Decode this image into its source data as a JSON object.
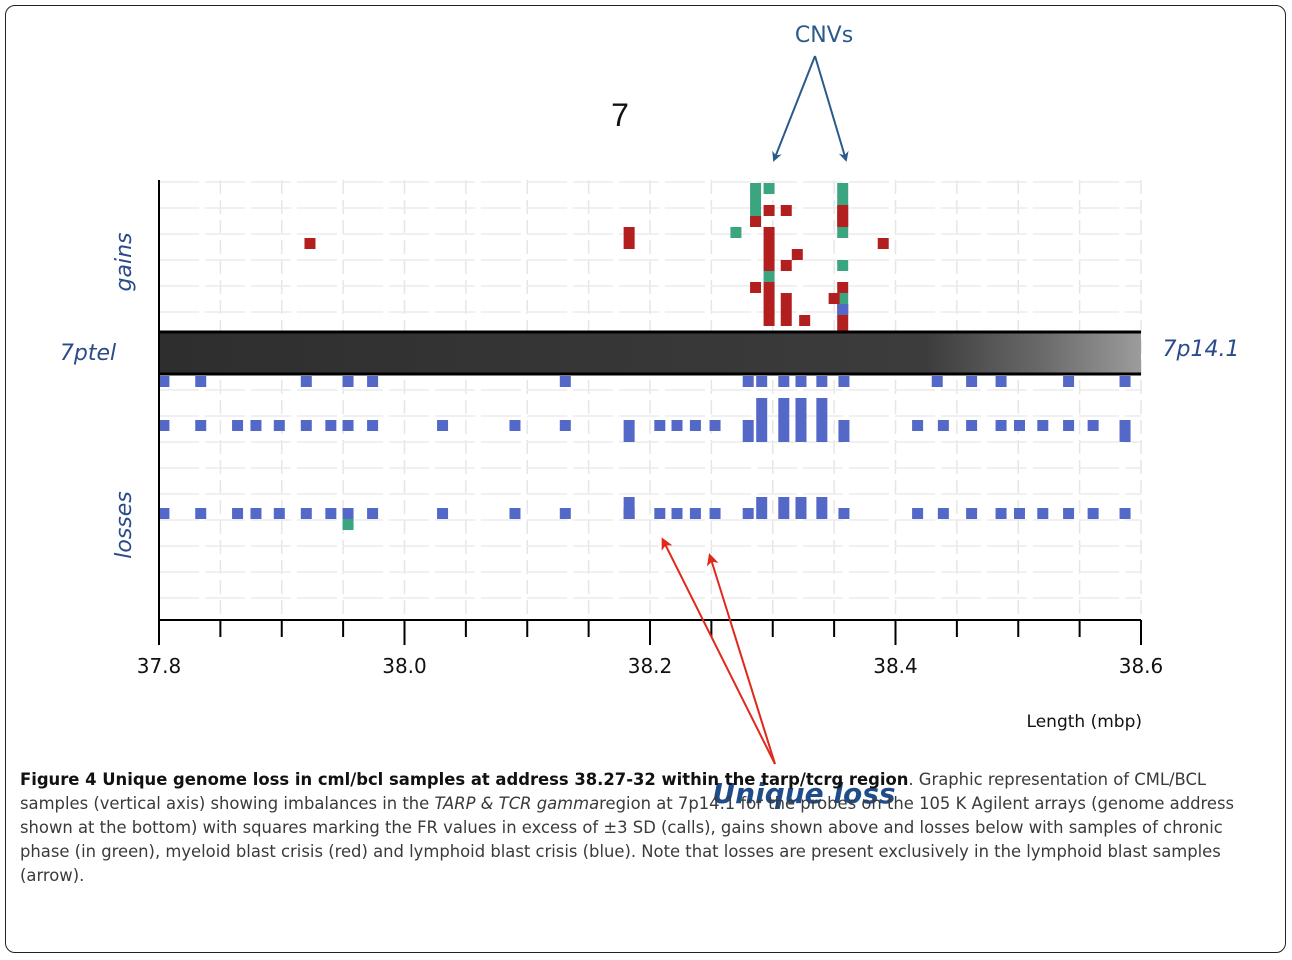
{
  "chart_data": {
    "type": "scatter",
    "title": "7",
    "xlabel": "Length (mbp)",
    "xlim": [
      37.8,
      38.6
    ],
    "x_ticks": [
      "37.8",
      "38.0",
      "38.2",
      "38.4",
      "38.6"
    ],
    "upper_label": "gains",
    "lower_label": "losses",
    "band_left_label": "7ptel",
    "band_right_label": "7p14.1",
    "grid": true,
    "series": [
      {
        "name": "chronic phase",
        "color": "#3aa57e",
        "marks": [
          {
            "side": "gain",
            "x": 38.286,
            "row": 1
          },
          {
            "side": "gain",
            "x": 38.297,
            "row": 1
          },
          {
            "side": "gain",
            "x": 38.357,
            "row": 1
          },
          {
            "side": "gain",
            "x": 38.286,
            "row": 2
          },
          {
            "side": "gain",
            "x": 38.357,
            "row": 2
          },
          {
            "side": "gain",
            "x": 38.286,
            "row": 3
          },
          {
            "side": "gain",
            "x": 38.357,
            "row": 3
          },
          {
            "side": "gain",
            "x": 38.286,
            "row": 4
          },
          {
            "side": "gain",
            "x": 38.27,
            "row": 5
          },
          {
            "side": "gain",
            "x": 38.357,
            "row": 4
          },
          {
            "side": "gain",
            "x": 38.357,
            "row": 5
          },
          {
            "side": "gain",
            "x": 38.297,
            "row": 9
          },
          {
            "side": "gain",
            "x": 38.357,
            "row": 8
          },
          {
            "side": "gain",
            "x": 38.357,
            "row": 11
          },
          {
            "side": "loss",
            "x": 37.954,
            "row": 14
          }
        ]
      },
      {
        "name": "myeloid blast crisis",
        "color": "#b31e1e",
        "marks": [
          {
            "side": "gain",
            "x": 38.297,
            "row": 3
          },
          {
            "side": "gain",
            "x": 38.311,
            "row": 3
          },
          {
            "side": "gain",
            "x": 38.357,
            "row": 3
          },
          {
            "side": "gain",
            "x": 38.286,
            "row": 4
          },
          {
            "side": "gain",
            "x": 38.357,
            "row": 4
          },
          {
            "side": "gain",
            "x": 38.297,
            "row": 5
          },
          {
            "side": "gain",
            "x": 38.183,
            "row": 5
          },
          {
            "side": "gain",
            "x": 38.39,
            "row": 6
          },
          {
            "side": "gain",
            "x": 37.923,
            "row": 6
          },
          {
            "side": "gain",
            "x": 38.183,
            "row": 6
          },
          {
            "side": "gain",
            "x": 38.297,
            "row": 6
          },
          {
            "side": "gain",
            "x": 38.297,
            "row": 7
          },
          {
            "side": "gain",
            "x": 38.32,
            "row": 7
          },
          {
            "side": "gain",
            "x": 38.297,
            "row": 8
          },
          {
            "side": "gain",
            "x": 38.311,
            "row": 8
          },
          {
            "side": "gain",
            "x": 38.286,
            "row": 10
          },
          {
            "side": "gain",
            "x": 38.297,
            "row": 10
          },
          {
            "side": "gain",
            "x": 38.357,
            "row": 10
          },
          {
            "side": "gain",
            "x": 38.297,
            "row": 11
          },
          {
            "side": "gain",
            "x": 38.311,
            "row": 11
          },
          {
            "side": "gain",
            "x": 38.35,
            "row": 11
          },
          {
            "side": "gain",
            "x": 38.297,
            "row": 12
          },
          {
            "side": "gain",
            "x": 38.311,
            "row": 12
          },
          {
            "side": "gain",
            "x": 38.357,
            "row": 12
          },
          {
            "side": "gain",
            "x": 38.297,
            "row": 13
          },
          {
            "side": "gain",
            "x": 38.311,
            "row": 13
          },
          {
            "side": "gain",
            "x": 38.326,
            "row": 13
          },
          {
            "side": "gain",
            "x": 38.357,
            "row": 13
          },
          {
            "side": "gain",
            "x": 38.357,
            "row": 14
          },
          {
            "side": "loss",
            "x": 38.183,
            "row": 13
          }
        ]
      },
      {
        "name": "lymphoid blast crisis",
        "color": "#5468c8",
        "marks": [
          {
            "side": "gain",
            "x": 38.357,
            "row": 12
          },
          {
            "side": "loss",
            "x": 37.804,
            "row": 1
          },
          {
            "side": "loss",
            "x": 37.834,
            "row": 1
          },
          {
            "side": "loss",
            "x": 37.92,
            "row": 1
          },
          {
            "side": "loss",
            "x": 37.954,
            "row": 1
          },
          {
            "side": "loss",
            "x": 37.974,
            "row": 1
          },
          {
            "side": "loss",
            "x": 38.131,
            "row": 1
          },
          {
            "side": "loss",
            "x": 38.28,
            "row": 1
          },
          {
            "side": "loss",
            "x": 38.291,
            "row": 1
          },
          {
            "side": "loss",
            "x": 38.309,
            "row": 1
          },
          {
            "side": "loss",
            "x": 38.323,
            "row": 1
          },
          {
            "side": "loss",
            "x": 38.34,
            "row": 1
          },
          {
            "side": "loss",
            "x": 38.358,
            "row": 1
          },
          {
            "side": "loss",
            "x": 38.434,
            "row": 1
          },
          {
            "side": "loss",
            "x": 38.462,
            "row": 1
          },
          {
            "side": "loss",
            "x": 38.486,
            "row": 1
          },
          {
            "side": "loss",
            "x": 38.541,
            "row": 1
          },
          {
            "side": "loss",
            "x": 38.587,
            "row": 1
          },
          {
            "side": "loss",
            "x": 38.291,
            "row": 3
          },
          {
            "side": "loss",
            "x": 38.309,
            "row": 3
          },
          {
            "side": "loss",
            "x": 38.323,
            "row": 3
          },
          {
            "side": "loss",
            "x": 38.34,
            "row": 3
          },
          {
            "side": "loss",
            "x": 38.291,
            "row": 4
          },
          {
            "side": "loss",
            "x": 38.309,
            "row": 4
          },
          {
            "side": "loss",
            "x": 38.323,
            "row": 4
          },
          {
            "side": "loss",
            "x": 38.34,
            "row": 4
          },
          {
            "side": "loss",
            "x": 37.804,
            "row": 5
          },
          {
            "side": "loss",
            "x": 37.834,
            "row": 5
          },
          {
            "side": "loss",
            "x": 37.864,
            "row": 5
          },
          {
            "side": "loss",
            "x": 37.879,
            "row": 5
          },
          {
            "side": "loss",
            "x": 37.898,
            "row": 5
          },
          {
            "side": "loss",
            "x": 37.92,
            "row": 5
          },
          {
            "side": "loss",
            "x": 37.94,
            "row": 5
          },
          {
            "side": "loss",
            "x": 37.954,
            "row": 5
          },
          {
            "side": "loss",
            "x": 37.974,
            "row": 5
          },
          {
            "side": "loss",
            "x": 38.031,
            "row": 5
          },
          {
            "side": "loss",
            "x": 38.09,
            "row": 5
          },
          {
            "side": "loss",
            "x": 38.131,
            "row": 5
          },
          {
            "side": "loss",
            "x": 38.183,
            "row": 5
          },
          {
            "side": "loss",
            "x": 38.208,
            "row": 5
          },
          {
            "side": "loss",
            "x": 38.222,
            "row": 5
          },
          {
            "side": "loss",
            "x": 38.237,
            "row": 5
          },
          {
            "side": "loss",
            "x": 38.253,
            "row": 5
          },
          {
            "side": "loss",
            "x": 38.28,
            "row": 5
          },
          {
            "side": "loss",
            "x": 38.291,
            "row": 5
          },
          {
            "side": "loss",
            "x": 38.309,
            "row": 5
          },
          {
            "side": "loss",
            "x": 38.323,
            "row": 5
          },
          {
            "side": "loss",
            "x": 38.34,
            "row": 5
          },
          {
            "side": "loss",
            "x": 38.358,
            "row": 5
          },
          {
            "side": "loss",
            "x": 38.418,
            "row": 5
          },
          {
            "side": "loss",
            "x": 38.439,
            "row": 5
          },
          {
            "side": "loss",
            "x": 38.462,
            "row": 5
          },
          {
            "side": "loss",
            "x": 38.486,
            "row": 5
          },
          {
            "side": "loss",
            "x": 38.501,
            "row": 5
          },
          {
            "side": "loss",
            "x": 38.52,
            "row": 5
          },
          {
            "side": "loss",
            "x": 38.541,
            "row": 5
          },
          {
            "side": "loss",
            "x": 38.561,
            "row": 5
          },
          {
            "side": "loss",
            "x": 38.587,
            "row": 5
          },
          {
            "side": "loss",
            "x": 38.183,
            "row": 6
          },
          {
            "side": "loss",
            "x": 38.28,
            "row": 6
          },
          {
            "side": "loss",
            "x": 38.291,
            "row": 6
          },
          {
            "side": "loss",
            "x": 38.309,
            "row": 6
          },
          {
            "side": "loss",
            "x": 38.323,
            "row": 6
          },
          {
            "side": "loss",
            "x": 38.34,
            "row": 6
          },
          {
            "side": "loss",
            "x": 38.358,
            "row": 6
          },
          {
            "side": "loss",
            "x": 38.587,
            "row": 6
          },
          {
            "side": "loss",
            "x": 38.183,
            "row": 12
          },
          {
            "side": "loss",
            "x": 38.291,
            "row": 12
          },
          {
            "side": "loss",
            "x": 38.309,
            "row": 12
          },
          {
            "side": "loss",
            "x": 38.323,
            "row": 12
          },
          {
            "side": "loss",
            "x": 38.34,
            "row": 12
          },
          {
            "side": "loss",
            "x": 37.804,
            "row": 13
          },
          {
            "side": "loss",
            "x": 37.834,
            "row": 13
          },
          {
            "side": "loss",
            "x": 37.864,
            "row": 13
          },
          {
            "side": "loss",
            "x": 37.879,
            "row": 13
          },
          {
            "side": "loss",
            "x": 37.898,
            "row": 13
          },
          {
            "side": "loss",
            "x": 37.92,
            "row": 13
          },
          {
            "side": "loss",
            "x": 37.94,
            "row": 13
          },
          {
            "side": "loss",
            "x": 37.954,
            "row": 13
          },
          {
            "side": "loss",
            "x": 37.974,
            "row": 13
          },
          {
            "side": "loss",
            "x": 38.031,
            "row": 13
          },
          {
            "side": "loss",
            "x": 38.09,
            "row": 13
          },
          {
            "side": "loss",
            "x": 38.131,
            "row": 13
          },
          {
            "side": "loss",
            "x": 38.183,
            "row": 13
          },
          {
            "side": "loss",
            "x": 38.208,
            "row": 13
          },
          {
            "side": "loss",
            "x": 38.222,
            "row": 13
          },
          {
            "side": "loss",
            "x": 38.237,
            "row": 13
          },
          {
            "side": "loss",
            "x": 38.253,
            "row": 13
          },
          {
            "side": "loss",
            "x": 38.28,
            "row": 13
          },
          {
            "side": "loss",
            "x": 38.291,
            "row": 13
          },
          {
            "side": "loss",
            "x": 38.309,
            "row": 13
          },
          {
            "side": "loss",
            "x": 38.323,
            "row": 13
          },
          {
            "side": "loss",
            "x": 38.34,
            "row": 13
          },
          {
            "side": "loss",
            "x": 38.358,
            "row": 13
          },
          {
            "side": "loss",
            "x": 38.418,
            "row": 13
          },
          {
            "side": "loss",
            "x": 38.439,
            "row": 13
          },
          {
            "side": "loss",
            "x": 38.462,
            "row": 13
          },
          {
            "side": "loss",
            "x": 38.486,
            "row": 13
          },
          {
            "side": "loss",
            "x": 38.501,
            "row": 13
          },
          {
            "side": "loss",
            "x": 38.52,
            "row": 13
          },
          {
            "side": "loss",
            "x": 38.541,
            "row": 13
          },
          {
            "side": "loss",
            "x": 38.561,
            "row": 13
          },
          {
            "side": "loss",
            "x": 38.587,
            "row": 13
          }
        ]
      }
    ]
  },
  "annotations": {
    "top": "CNVs",
    "bottom": "Unique loss"
  },
  "colors": {
    "label": "#2a4a8a",
    "arrow_top": "#2b5a8c",
    "arrow_bottom": "#e0281c",
    "band": "#3a3a3a"
  },
  "caption": {
    "figure_label": "Figure 4 Unique genome loss in cml/bcl samples at address 38.27-32 within the tarp/tcrg region",
    "text_1": ". Graphic representation of CML/BCL samples (vertical axis) showing imbalances in the ",
    "italic": "TARP & TCR gamma",
    "text_2": "region at 7p14.1 for the probes on the 105 K Agilent arrays (genome address shown at the bottom) with squares marking the FR values in excess of ±3 SD (calls), gains shown above and losses below with samples of chronic phase (in green), myeloid blast crisis (red) and lymphoid blast crisis (blue). Note that losses are present exclusively in the lymphoid blast samples (arrow)."
  }
}
